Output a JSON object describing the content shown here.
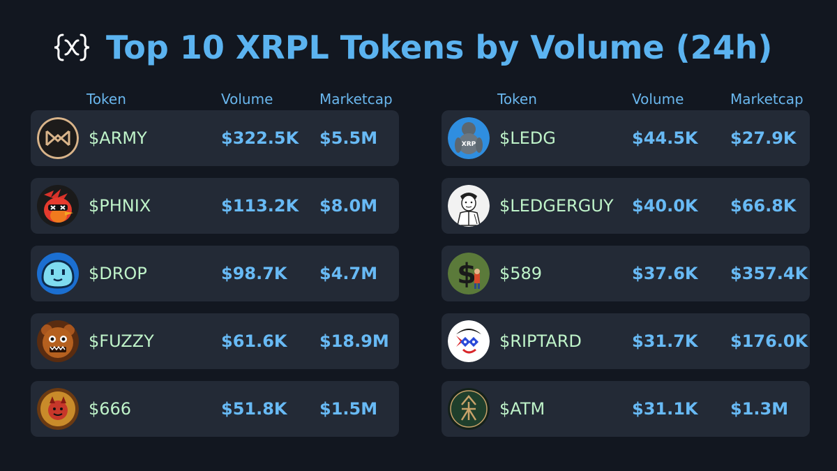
{
  "title": "Top 10 XRPL Tokens by Volume (24h)",
  "logo_icon": "curly-brace-x-logo",
  "columns": {
    "token": "Token",
    "volume": "Volume",
    "marketcap": "Marketcap"
  },
  "colors": {
    "background": "#121720",
    "row": "#232a36",
    "title": "#5bb3f0",
    "token_name": "#bff3c9",
    "values": "#68baf5"
  },
  "left": [
    {
      "name": "$ARMY",
      "volume": "$322.5K",
      "marketcap": "$5.5M",
      "icon": "army-logo-icon"
    },
    {
      "name": "$PHNIX",
      "volume": "$113.2K",
      "marketcap": "$8.0M",
      "icon": "phoenix-bird-icon"
    },
    {
      "name": "$DROP",
      "volume": "$98.7K",
      "marketcap": "$4.7M",
      "icon": "drop-blob-icon"
    },
    {
      "name": "$FUZZY",
      "volume": "$61.6K",
      "marketcap": "$18.9M",
      "icon": "fuzzy-bear-icon"
    },
    {
      "name": "$666",
      "volume": "$51.8K",
      "marketcap": "$1.5M",
      "icon": "devil-coin-icon"
    }
  ],
  "right": [
    {
      "name": "$LEDG",
      "volume": "$44.5K",
      "marketcap": "$27.9K",
      "icon": "xrp-gorilla-icon"
    },
    {
      "name": "$LEDGERGUY",
      "volume": "$40.0K",
      "marketcap": "$66.8K",
      "icon": "ledger-guy-sketch-icon"
    },
    {
      "name": "$589",
      "volume": "$37.6K",
      "marketcap": "$357.4K",
      "icon": "dollar-sign-icon"
    },
    {
      "name": "$RIPTARD",
      "volume": "$31.7K",
      "marketcap": "$176.0K",
      "icon": "riptard-face-icon"
    },
    {
      "name": "$ATM",
      "volume": "$31.1K",
      "marketcap": "$1.3M",
      "icon": "atm-arrow-icon"
    }
  ]
}
